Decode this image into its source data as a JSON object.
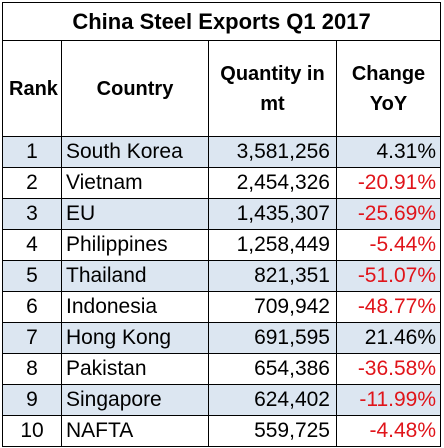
{
  "title": "China Steel Exports Q1 2017",
  "headers": {
    "rank": "Rank",
    "country": "Country",
    "quantity": "Quantity in mt",
    "change": "Change YoY"
  },
  "rows": [
    {
      "rank": "1",
      "country": "South Korea",
      "quantity": "3,581,256",
      "change": "4.31%",
      "negative": false
    },
    {
      "rank": "2",
      "country": "Vietnam",
      "quantity": "2,454,326",
      "change": "-20.91%",
      "negative": true
    },
    {
      "rank": "3",
      "country": "EU",
      "quantity": "1,435,307",
      "change": "-25.69%",
      "negative": true
    },
    {
      "rank": "4",
      "country": "Philippines",
      "quantity": "1,258,449",
      "change": "-5.44%",
      "negative": true
    },
    {
      "rank": "5",
      "country": "Thailand",
      "quantity": "821,351",
      "change": "-51.07%",
      "negative": true
    },
    {
      "rank": "6",
      "country": "Indonesia",
      "quantity": "709,942",
      "change": "-48.77%",
      "negative": true
    },
    {
      "rank": "7",
      "country": "Hong Kong",
      "quantity": "691,595",
      "change": "21.46%",
      "negative": false
    },
    {
      "rank": "8",
      "country": "Pakistan",
      "quantity": "654,386",
      "change": "-36.58%",
      "negative": true
    },
    {
      "rank": "9",
      "country": "Singapore",
      "quantity": "624,402",
      "change": "-11.99%",
      "negative": true
    },
    {
      "rank": "10",
      "country": "NAFTA",
      "quantity": "559,725",
      "change": "-4.48%",
      "negative": true
    }
  ],
  "colors": {
    "alt_row": "#dce6f1",
    "negative_text": "#e0141a"
  }
}
